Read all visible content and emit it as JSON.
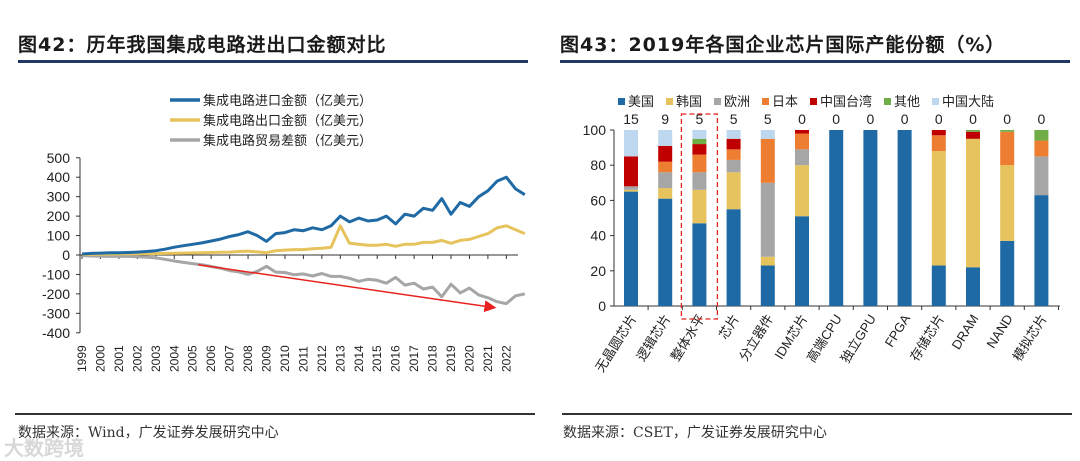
{
  "left": {
    "title": "图42：历年我国集成电路进出口金额对比",
    "source": "数据来源：Wind，广发证券发展研究中心"
  },
  "right": {
    "title": "图43：2019年各国企业芯片国际产能份额（%）",
    "source": "数据来源：CSET，广发证券发展研究中心"
  },
  "watermark": "大数跨境",
  "chart_data": [
    {
      "type": "line",
      "title": "图42：历年我国集成电路进出口金额对比",
      "xlabel": "",
      "ylabel": "",
      "ylim": [
        -400,
        500
      ],
      "yticks": [
        500,
        400,
        300,
        200,
        100,
        0,
        -100,
        -200,
        -300,
        -400
      ],
      "xticks": [
        "1999",
        "2000",
        "2001",
        "2002",
        "2003",
        "2004",
        "2005",
        "2006",
        "2007",
        "2008",
        "2009",
        "2010",
        "2011",
        "2012",
        "2013",
        "2014",
        "2015",
        "2016",
        "2017",
        "2018",
        "2019",
        "2020",
        "2021",
        "2022"
      ],
      "legend_position": "top",
      "x_start": 1999,
      "x_step": 0.5,
      "series": [
        {
          "name": "集成电路进口金额（亿美元）",
          "color": "#1f6aa5",
          "values": [
            5,
            8,
            10,
            12,
            12,
            13,
            15,
            18,
            22,
            30,
            40,
            48,
            55,
            62,
            72,
            82,
            95,
            105,
            120,
            100,
            70,
            110,
            115,
            130,
            125,
            140,
            130,
            150,
            200,
            170,
            190,
            175,
            180,
            200,
            160,
            210,
            200,
            240,
            230,
            290,
            210,
            270,
            250,
            300,
            330,
            380,
            400,
            340,
            310
          ]
        },
        {
          "name": "集成电路出口金额（亿美元）",
          "color": "#e6c35c",
          "values": [
            2,
            3,
            4,
            5,
            5,
            6,
            6,
            7,
            7,
            8,
            9,
            10,
            11,
            12,
            13,
            14,
            15,
            18,
            20,
            16,
            12,
            22,
            25,
            28,
            28,
            32,
            35,
            40,
            150,
            60,
            55,
            50,
            50,
            55,
            45,
            55,
            55,
            65,
            65,
            75,
            60,
            75,
            80,
            95,
            110,
            140,
            150,
            130,
            110
          ]
        },
        {
          "name": "集成电路贸易差额（亿美元）",
          "color": "#a6a6a6",
          "values": [
            -3,
            -5,
            -6,
            -7,
            -7,
            -7,
            -9,
            -11,
            -15,
            -22,
            -31,
            -38,
            -44,
            -50,
            -59,
            -68,
            -80,
            -87,
            -100,
            -84,
            -58,
            -88,
            -90,
            -102,
            -97,
            -108,
            -95,
            -110,
            -110,
            -120,
            -135,
            -125,
            -130,
            -145,
            -115,
            -155,
            -145,
            -175,
            -165,
            -215,
            -150,
            -195,
            -170,
            -205,
            -220,
            -240,
            -250,
            -210,
            -200
          ]
        }
      ],
      "annotation": {
        "type": "arrow",
        "color": "#e8231f",
        "from": [
          2005.3,
          -50
        ],
        "to": [
          2021.3,
          -270
        ]
      }
    },
    {
      "type": "bar",
      "stacked": true,
      "title": "图43：2019年各国企业芯片国际产能份额（%）",
      "xlabel": "",
      "ylabel": "",
      "ylim": [
        0,
        100
      ],
      "yticks": [
        0,
        20,
        40,
        60,
        80,
        100
      ],
      "legend_position": "top",
      "categories": [
        "无晶圆芯片",
        "逻辑芯片",
        "整体水平",
        "芯片",
        "分立器件",
        "IDM芯片",
        "高端CPU",
        "独立GPU",
        "FPGA",
        "存储芯片",
        "DRAM",
        "NAND",
        "模拟芯片"
      ],
      "top_labels": [
        "15",
        "9",
        "5",
        "5",
        "5",
        "0",
        "0",
        "0",
        "0",
        "0",
        "0",
        "0",
        "0"
      ],
      "highlight": "整体水平",
      "series": [
        {
          "name": "美国",
          "color": "#1f6aa5",
          "values": [
            65,
            61,
            47,
            55,
            23,
            51,
            100,
            100,
            100,
            23,
            22,
            37,
            63
          ]
        },
        {
          "name": "韩国",
          "color": "#e6c35c",
          "values": [
            1,
            6,
            19,
            21,
            5,
            29,
            0,
            0,
            0,
            65,
            73,
            43,
            0
          ]
        },
        {
          "name": "欧洲",
          "color": "#a6a6a6",
          "values": [
            2,
            9,
            10,
            7,
            42,
            9,
            0,
            0,
            0,
            0,
            0,
            0,
            22
          ]
        },
        {
          "name": "日本",
          "color": "#ed7d31",
          "values": [
            0,
            6,
            10,
            6,
            25,
            9,
            0,
            0,
            0,
            9,
            0,
            19,
            9
          ]
        },
        {
          "name": "中国台湾",
          "color": "#c00000",
          "values": [
            17,
            9,
            6,
            6,
            0,
            2,
            0,
            0,
            0,
            3,
            4,
            0,
            0
          ]
        },
        {
          "name": "其他",
          "color": "#70ad47",
          "values": [
            0,
            0,
            3,
            0,
            0,
            0,
            0,
            0,
            0,
            0,
            1,
            1,
            6
          ]
        },
        {
          "name": "中国大陆",
          "color": "#bdd7ee",
          "values": [
            15,
            9,
            5,
            5,
            5,
            0,
            0,
            0,
            0,
            0,
            0,
            0,
            0
          ]
        }
      ]
    }
  ]
}
